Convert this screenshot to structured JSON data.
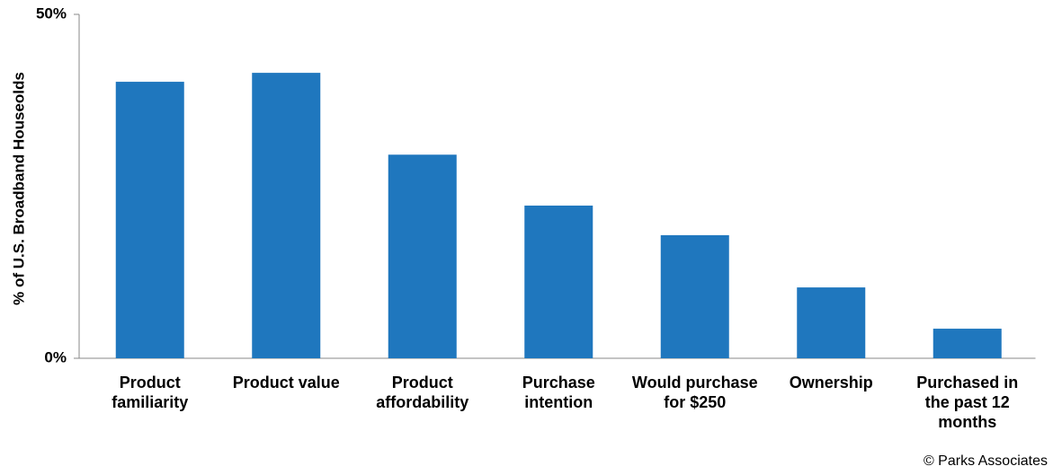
{
  "chart_data": {
    "type": "bar",
    "y_label": "% of U.S. Broadband Houseolds",
    "categories": [
      "Product familiarity",
      "Product value",
      "Product affordability",
      "Purchase intention",
      "Would purchase for $250",
      "Ownership",
      "Purchased in the past 12 months"
    ],
    "values": [
      40.2,
      41.5,
      29.6,
      22.2,
      17.9,
      10.3,
      4.3
    ],
    "color": "#1f77be",
    "ylim": [
      0,
      50
    ],
    "yticks": [
      {
        "value": 0,
        "label": "0%"
      },
      {
        "value": 50,
        "label": "50%"
      }
    ],
    "source": "© Parks Associates"
  }
}
